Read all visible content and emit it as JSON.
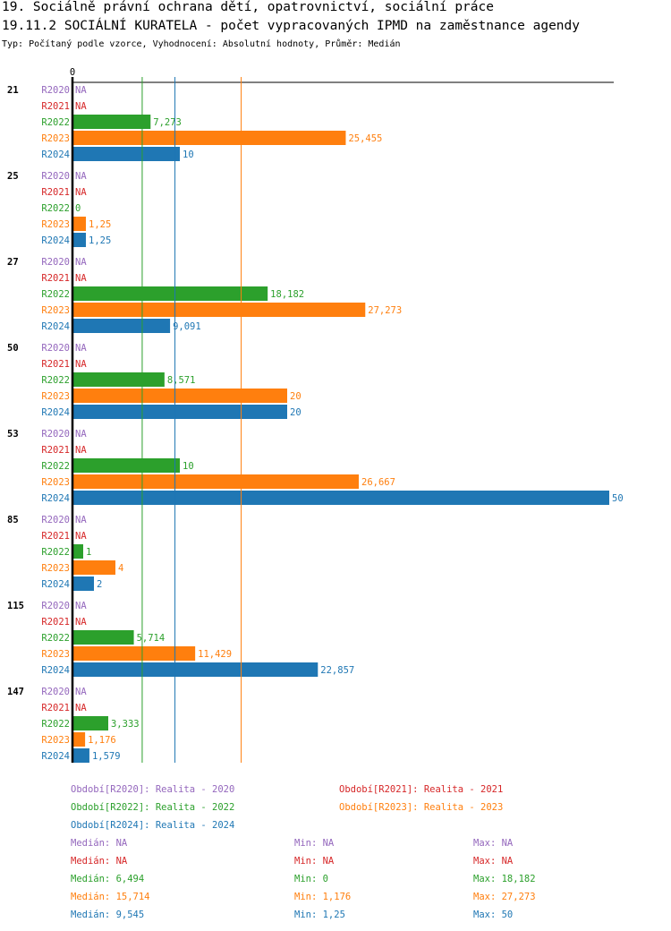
{
  "title1": "19. Sociálně právní ochrana dětí, opatrovnictví, sociální práce",
  "title2": "19.11.2 SOCIÁLNÍ KURATELA - počet vypracovaných IPMD na zaměstnance agendy",
  "subtitle": "Typ: Počítaný podle vzorce, Vyhodnocení: Absolutní hodnoty, Průměr: Medián",
  "chart_data": {
    "type": "bar",
    "orientation": "horizontal",
    "xlim": [
      0,
      50
    ],
    "x_tick_labels": [
      "0"
    ],
    "series_names": [
      "R2020",
      "R2021",
      "R2022",
      "R2023",
      "R2024"
    ],
    "colors": [
      "#9467bd",
      "#d62728",
      "#2ca02c",
      "#ff7f0e",
      "#1f77b4"
    ],
    "categories": [
      "21",
      "25",
      "27",
      "50",
      "53",
      "85",
      "115",
      "147"
    ],
    "series": [
      {
        "name": "R2020",
        "values": [
          null,
          null,
          null,
          null,
          null,
          null,
          null,
          null
        ],
        "labels": [
          "NA",
          "NA",
          "NA",
          "NA",
          "NA",
          "NA",
          "NA",
          "NA"
        ]
      },
      {
        "name": "R2021",
        "values": [
          null,
          null,
          null,
          null,
          null,
          null,
          null,
          null
        ],
        "labels": [
          "NA",
          "NA",
          "NA",
          "NA",
          "NA",
          "NA",
          "NA",
          "NA"
        ]
      },
      {
        "name": "R2022",
        "values": [
          7.273,
          0,
          18.182,
          8.571,
          10,
          1,
          5.714,
          3.333
        ],
        "labels": [
          "7,273",
          "0",
          "18,182",
          "8,571",
          "10",
          "1",
          "5,714",
          "3,333"
        ]
      },
      {
        "name": "R2023",
        "values": [
          25.455,
          1.25,
          27.273,
          20,
          26.667,
          4,
          11.429,
          1.176
        ],
        "labels": [
          "25,455",
          "1,25",
          "27,273",
          "20",
          "26,667",
          "4",
          "11,429",
          "1,176"
        ]
      },
      {
        "name": "R2024",
        "values": [
          10,
          1.25,
          9.091,
          20,
          50,
          2,
          22.857,
          1.579
        ],
        "labels": [
          "10",
          "1,25",
          "9,091",
          "20",
          "50",
          "2",
          "22,857",
          "1,579"
        ]
      }
    ],
    "median_lines": [
      {
        "series": "R2022",
        "value": 6.494
      },
      {
        "series": "R2023",
        "value": 15.714
      },
      {
        "series": "R2024",
        "value": 9.545
      }
    ],
    "legend": [
      "Období[R2020]: Realita - 2020",
      "Období[R2021]: Realita - 2021",
      "Období[R2022]: Realita - 2022",
      "Období[R2023]: Realita - 2023",
      "Období[R2024]: Realita - 2024"
    ],
    "stats": [
      {
        "median": "Medián: NA",
        "min": "Min: NA",
        "max": "Max: NA"
      },
      {
        "median": "Medián: NA",
        "min": "Min: NA",
        "max": "Max: NA"
      },
      {
        "median": "Medián: 6,494",
        "min": "Min: 0",
        "max": "Max: 18,182"
      },
      {
        "median": "Medián: 15,714",
        "min": "Min: 1,176",
        "max": "Max: 27,273"
      },
      {
        "median": "Medián: 9,545",
        "min": "Min: 1,25",
        "max": "Max: 50"
      }
    ]
  }
}
